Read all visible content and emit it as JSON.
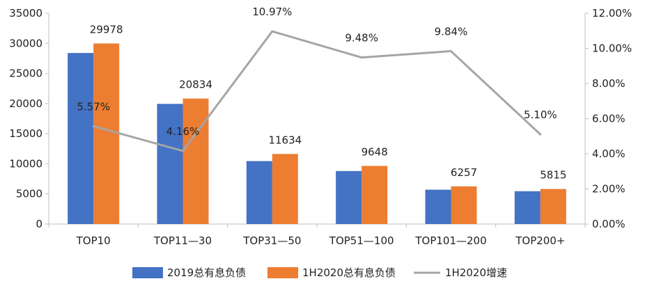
{
  "colors": {
    "series_2019": "#4472C4",
    "series_1h2020": "#ED7D31",
    "growth_line": "#A5A5A5",
    "axis": "#BFBFBF",
    "text": "#222222"
  },
  "chart_data": {
    "type": "bar",
    "categories": [
      "TOP10",
      "TOP11-30",
      "TOP31-50",
      "TOP51-100",
      "TOP101-200",
      "TOP200+"
    ],
    "category_labels": [
      "TOP10",
      "TOP11—30",
      "TOP31—50",
      "TOP51—100",
      "TOP101—200",
      "TOP200+"
    ],
    "series": [
      {
        "name": "2019总有息负债",
        "type": "bar",
        "axis": "left",
        "values": [
          28400,
          19950,
          10450,
          8800,
          5700,
          5450
        ]
      },
      {
        "name": "1H2020总有息负债",
        "type": "bar",
        "axis": "left",
        "values": [
          29978,
          20834,
          11634,
          9648,
          6257,
          5815
        ],
        "data_labels": [
          "29978",
          "20834",
          "11634",
          "9648",
          "6257",
          "5815"
        ]
      },
      {
        "name": "1H2020增速",
        "type": "line",
        "axis": "right",
        "values": [
          5.57,
          4.16,
          10.97,
          9.48,
          9.84,
          5.1
        ],
        "data_labels": [
          "5.57%",
          "4.16%",
          "10.97%",
          "9.48%",
          "9.84%",
          "5.10%"
        ]
      }
    ],
    "y_left": {
      "min": 0,
      "max": 35000,
      "step": 5000,
      "tick_labels": [
        "0",
        "5000",
        "10000",
        "15000",
        "20000",
        "25000",
        "30000",
        "35000"
      ]
    },
    "y_right": {
      "min": 0,
      "max": 12,
      "step": 2,
      "unit": "%",
      "tick_labels": [
        "0.00%",
        "2.00%",
        "4.00%",
        "6.00%",
        "8.00%",
        "10.00%",
        "12.00%"
      ]
    },
    "legend": {
      "position": "bottom",
      "entries": [
        "2019总有息负债",
        "1H2020总有息负债",
        "1H2020增速"
      ]
    },
    "grid": false
  }
}
